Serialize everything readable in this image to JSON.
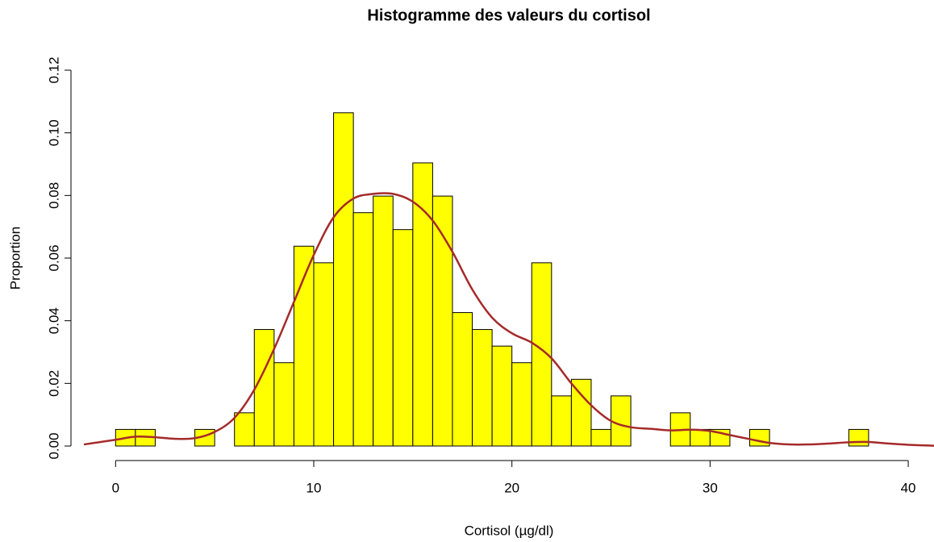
{
  "chart_data": {
    "type": "histogram",
    "title": "Histogramme des valeurs du cortisol",
    "x_label": "Cortisol (µg/dl)",
    "y_label": "Proportion",
    "bins": [
      0,
      1,
      2,
      3,
      4,
      5,
      6,
      7,
      8,
      9,
      10,
      11,
      12,
      13,
      14,
      15,
      16,
      17,
      18,
      19,
      20,
      21,
      22,
      23,
      24,
      25,
      26,
      27,
      28,
      29,
      30,
      31,
      32,
      33,
      34,
      35,
      36,
      37,
      38
    ],
    "values": [
      0.0053,
      0.0053,
      0,
      0,
      0.0053,
      0,
      0.0106,
      0.0372,
      0.0266,
      0.0638,
      0.0585,
      0.1064,
      0.0745,
      0.0798,
      0.0691,
      0.0904,
      0.0798,
      0.0426,
      0.0372,
      0.0319,
      0.0266,
      0.0585,
      0.016,
      0.0213,
      0.0053,
      0.016,
      0,
      0,
      0.0106,
      0.0053,
      0.0053,
      0,
      0.0053,
      0,
      0,
      0,
      0,
      0.0053
    ],
    "color": "#ffff00",
    "density": {
      "color": "#a52a2a",
      "x": [
        -1.6,
        0,
        1,
        2,
        3,
        4,
        5,
        6,
        7,
        8,
        9,
        10,
        11,
        12,
        13,
        14,
        15,
        16,
        17,
        18,
        19,
        20,
        21,
        22,
        23,
        24,
        25,
        26,
        27,
        28,
        29,
        30,
        31,
        32,
        33,
        34,
        35,
        36,
        37,
        38,
        39,
        40,
        41.3
      ],
      "y": [
        0.0005,
        0.002,
        0.003,
        0.0028,
        0.0023,
        0.0025,
        0.0045,
        0.009,
        0.018,
        0.031,
        0.046,
        0.061,
        0.073,
        0.079,
        0.0805,
        0.0805,
        0.078,
        0.072,
        0.062,
        0.05,
        0.041,
        0.036,
        0.033,
        0.028,
        0.02,
        0.013,
        0.008,
        0.006,
        0.0055,
        0.005,
        0.0052,
        0.0048,
        0.0035,
        0.0022,
        0.001,
        0.0005,
        0.0005,
        0.0008,
        0.0012,
        0.0013,
        0.0008,
        0.0004,
        0.0001
      ]
    },
    "xlim": [
      -1.6,
      41.3
    ],
    "ylim": [
      0,
      0.12
    ],
    "xticks": [
      0,
      10,
      20,
      30,
      40
    ],
    "yticks": [
      {
        "value": 0,
        "label": "0.00"
      },
      {
        "value": 0.02,
        "label": "0.02"
      },
      {
        "value": 0.04,
        "label": "0.04"
      },
      {
        "value": 0.06,
        "label": "0.06"
      },
      {
        "value": 0.08,
        "label": "0.08"
      },
      {
        "value": 0.1,
        "label": "0.10"
      },
      {
        "value": 0.12,
        "label": "0.12"
      }
    ]
  }
}
